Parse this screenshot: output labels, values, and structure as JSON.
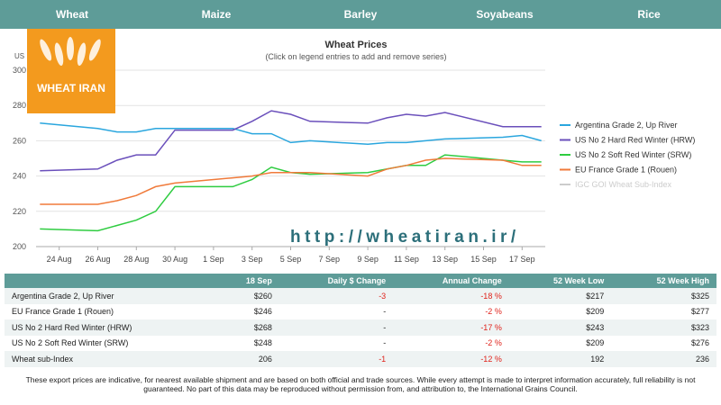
{
  "tabs": [
    "Wheat",
    "Maize",
    "Barley",
    "Soyabeans",
    "Rice"
  ],
  "logo": {
    "title": "WHEAT IRAN"
  },
  "watermark": "http://wheatiran.ir/",
  "chart_data": {
    "type": "line",
    "title": "Wheat Prices",
    "subtitle": "(Click on legend entries to add and remove series)",
    "y_label": "US",
    "x": [
      23,
      26,
      27,
      28,
      29,
      30,
      33,
      34,
      35,
      36,
      37,
      40,
      41,
      42,
      43,
      44,
      47,
      48,
      49
    ],
    "xlim": [
      22.8,
      49.2
    ],
    "xticks": [
      {
        "value": 24,
        "label": "24 Aug"
      },
      {
        "value": 26,
        "label": "26 Aug"
      },
      {
        "value": 28,
        "label": "28 Aug"
      },
      {
        "value": 30,
        "label": "30 Aug"
      },
      {
        "value": 32,
        "label": "1 Sep"
      },
      {
        "value": 34,
        "label": "3 Sep"
      },
      {
        "value": 36,
        "label": "5 Sep"
      },
      {
        "value": 38,
        "label": "7 Sep"
      },
      {
        "value": 40,
        "label": "9 Sep"
      },
      {
        "value": 42,
        "label": "11 Sep"
      },
      {
        "value": 44,
        "label": "13 Sep"
      },
      {
        "value": 46,
        "label": "15 Sep"
      },
      {
        "value": 48,
        "label": "17 Sep"
      }
    ],
    "ylim": [
      200,
      300
    ],
    "yticks": [
      200,
      220,
      240,
      260,
      280,
      300
    ],
    "grid": true,
    "series": [
      {
        "name": "Argentina Grade 2, Up River",
        "color": "#2aa6de",
        "values": [
          270,
          267,
          265,
          265,
          267,
          267,
          267,
          264,
          264,
          259,
          260,
          258,
          259,
          259,
          260,
          261,
          262,
          263,
          260
        ]
      },
      {
        "name": "US No 2 Hard Red Winter (HRW)",
        "color": "#6a4fbb",
        "values": [
          243,
          244,
          249,
          252,
          252,
          266,
          266,
          271,
          277,
          275,
          271,
          270,
          273,
          275,
          274,
          276,
          268,
          268,
          268
        ]
      },
      {
        "name": "US No 2 Soft Red Winter (SRW)",
        "color": "#2ecc40",
        "values": [
          210,
          209,
          212,
          215,
          220,
          234,
          234,
          238,
          245,
          242,
          241,
          242,
          244,
          246,
          246,
          252,
          249,
          248,
          248
        ]
      },
      {
        "name": "EU France Grade 1 (Rouen)",
        "color": "#f07a3a",
        "values": [
          224,
          224,
          226,
          229,
          234,
          236,
          239,
          240,
          242,
          242,
          242,
          240,
          244,
          246,
          249,
          250,
          249,
          246,
          246
        ]
      },
      {
        "name": "IGC GOI Wheat Sub-Index",
        "color": "#cccccc",
        "values": [
          null,
          null,
          null,
          null,
          null,
          null,
          null,
          null,
          null,
          null,
          null,
          null,
          null,
          null,
          null,
          null,
          null,
          null,
          null
        ]
      }
    ]
  },
  "table": {
    "header": [
      "",
      "18 Sep",
      "Daily $ Change",
      "Annual Change",
      "52 Week Low",
      "52 Week High"
    ],
    "rows": [
      [
        "Argentina Grade 2, Up River",
        "$260",
        "-3",
        "-18 %",
        "$217",
        "$325"
      ],
      [
        "EU France Grade 1 (Rouen)",
        "$246",
        "-",
        "-2 %",
        "$209",
        "$277"
      ],
      [
        "US No 2 Hard Red Winter (HRW)",
        "$268",
        "-",
        "-17 %",
        "$243",
        "$323"
      ],
      [
        "US No 2 Soft Red Winter (SRW)",
        "$248",
        "-",
        "-2 %",
        "$209",
        "$276"
      ],
      [
        "Wheat sub-Index",
        "206",
        "-1",
        "-12 %",
        "192",
        "236"
      ]
    ]
  },
  "note": "These export prices are indicative, for nearest available shipment and are based on both official and trade sources. While every attempt is made to interpret information accurately, full reliability is not guaranteed. No part of this data may be reproduced without permission from, and attribution to, the International Grains Council."
}
